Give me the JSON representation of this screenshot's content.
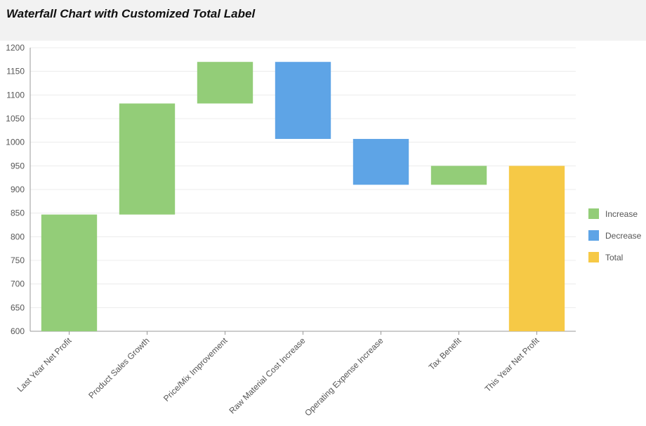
{
  "chart_data": {
    "type": "waterfall",
    "title": "Waterfall Chart with Customized Total Label",
    "categories": [
      "Last Year Net Profit",
      "Product Sales Growth",
      "Price/Mix Improvement",
      "Raw Material Cost Increase",
      "Operating Expense Increase",
      "Tax Benefit",
      "This Year Net Profit"
    ],
    "values": [
      847,
      235,
      88,
      -163,
      -97,
      40,
      950
    ],
    "kinds": [
      "increase",
      "increase",
      "increase",
      "decrease",
      "decrease",
      "increase",
      "total"
    ],
    "ylim": [
      600,
      1200
    ],
    "yticks": [
      600,
      650,
      700,
      750,
      800,
      850,
      900,
      950,
      1000,
      1050,
      1100,
      1150,
      1200
    ],
    "grid": true,
    "legend_position": "right",
    "legend": [
      {
        "label": "Increase",
        "color": "#93cd78"
      },
      {
        "label": "Decrease",
        "color": "#5ea4e6"
      },
      {
        "label": "Total",
        "color": "#f6c946"
      }
    ]
  }
}
